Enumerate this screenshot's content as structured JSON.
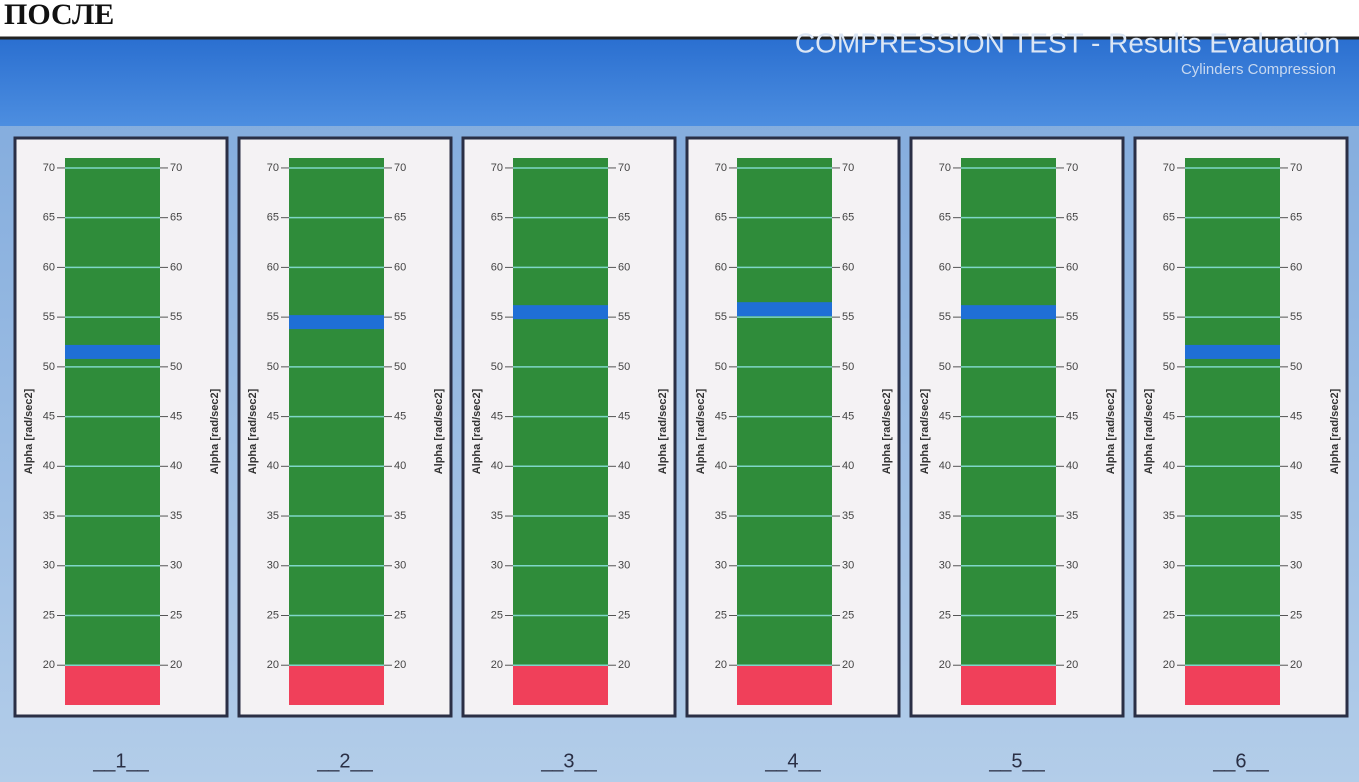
{
  "header": {
    "label": "ПОСЛЕ",
    "title": "COMPRESSION TEST - Results Evaluation",
    "subtitle": "Cylinders Compression"
  },
  "gauges": {
    "axis_label": "Alpha [rad/sec2]",
    "ylim": [
      16,
      71
    ],
    "yticks": [
      20,
      25,
      30,
      35,
      40,
      45,
      50,
      55,
      60,
      65,
      70
    ],
    "red_limit": 20,
    "items": [
      {
        "label": "__1__",
        "value": 51.5
      },
      {
        "label": "__2__",
        "value": 54.5
      },
      {
        "label": "__3__",
        "value": 55.5
      },
      {
        "label": "__4__",
        "value": 55.8
      },
      {
        "label": "__5__",
        "value": 55.5
      },
      {
        "label": "__6__",
        "value": 51.5
      }
    ]
  }
}
